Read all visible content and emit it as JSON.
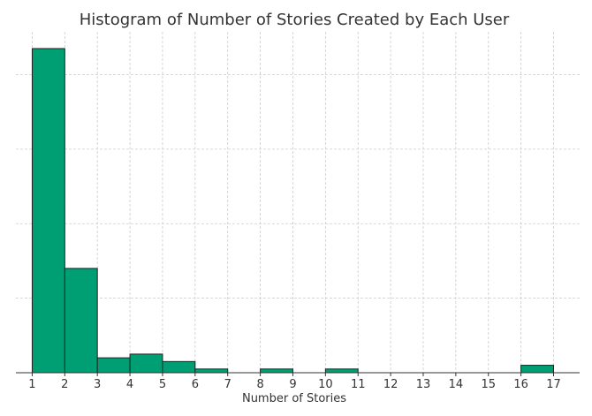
{
  "chart_data": {
    "type": "bar",
    "title": "Histogram of Number of Stories Created by Each User",
    "xlabel": "Number of Stories",
    "ylabel": "",
    "bin_edges": [
      1,
      2,
      3,
      4,
      5,
      6,
      7,
      8,
      9,
      10,
      11,
      12,
      13,
      14,
      15,
      16,
      17
    ],
    "values": [
      87,
      28,
      4,
      5,
      3,
      1,
      0,
      1,
      0,
      1,
      0,
      0,
      0,
      0,
      0,
      2
    ],
    "x_ticks": [
      "1",
      "2",
      "3",
      "4",
      "5",
      "6",
      "7",
      "8",
      "9",
      "10",
      "11",
      "12",
      "13",
      "14",
      "15",
      "16",
      "17"
    ],
    "xlim": [
      0.5,
      17.8
    ],
    "ylim": [
      0,
      91.5
    ],
    "y_gridlines": [
      20,
      40,
      60,
      80
    ],
    "grid": true,
    "bar_color": "#009e73",
    "bar_edge_color": "#222222"
  }
}
